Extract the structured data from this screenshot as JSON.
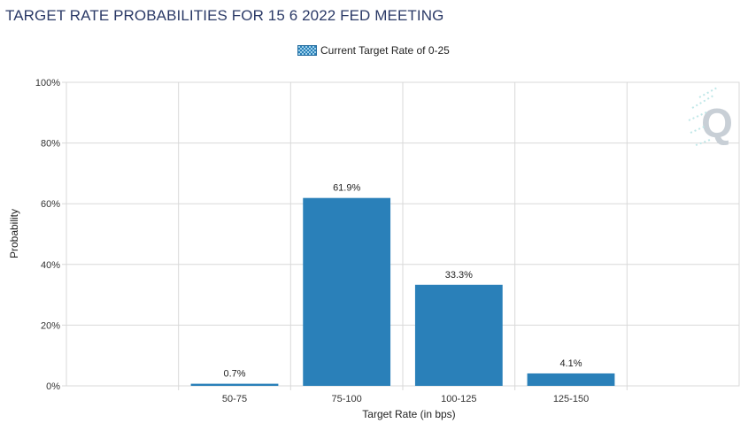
{
  "title": "TARGET RATE PROBABILITIES FOR 15 6 2022 FED MEETING",
  "legend": {
    "label": "Current Target Rate of 0-25"
  },
  "watermark": {
    "text": "Q"
  },
  "colors": {
    "bar": "#2a80b9",
    "grid": "#d9d9d9",
    "title": "#2b3a67"
  },
  "chart_data": {
    "type": "bar",
    "categories": [
      "",
      "50-75",
      "75-100",
      "100-125",
      "125-150",
      ""
    ],
    "series": [
      {
        "name": "Current Target Rate of 0-25",
        "values": [
          null,
          0.7,
          61.9,
          33.3,
          4.1,
          null
        ]
      }
    ],
    "data_labels": [
      "",
      "0.7%",
      "61.9%",
      "33.3%",
      "4.1%",
      ""
    ],
    "xlabel": "Target Rate (in bps)",
    "ylabel": "Probability",
    "ylim": [
      0,
      100
    ],
    "yticks": [
      "0%",
      "20%",
      "40%",
      "60%",
      "80%",
      "100%"
    ],
    "grid": true,
    "legend_position": "top-center"
  }
}
